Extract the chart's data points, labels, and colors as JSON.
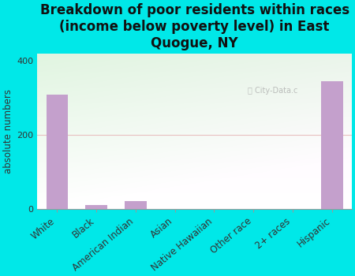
{
  "title": "Breakdown of poor residents within races\n(income below poverty level) in East\nQuogue, NY",
  "ylabel": "absolute numbers",
  "categories": [
    "White",
    "Black",
    "American Indian",
    "Asian",
    "Native Hawaiian",
    "Other race",
    "2+ races",
    "Hispanic"
  ],
  "values": [
    310,
    10,
    22,
    0,
    0,
    0,
    0,
    345
  ],
  "bar_color": "#c4a0cc",
  "background_color": "#00e8e8",
  "plot_bg_color_topleft": "#d8efd0",
  "plot_bg_color_topright": "#f0f8e8",
  "plot_bg_color_bottom": "#ffffff",
  "ylim": [
    0,
    420
  ],
  "yticks": [
    0,
    200,
    400
  ],
  "title_fontsize": 12,
  "label_fontsize": 8.5,
  "tick_fontsize": 8
}
